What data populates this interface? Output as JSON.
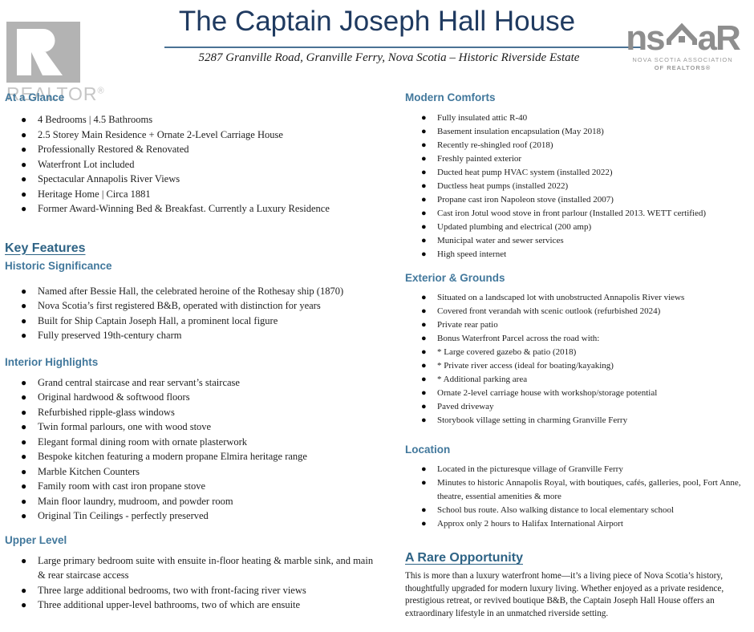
{
  "header": {
    "title": "The Captain Joseph Hall House",
    "subtitle": "5287 Granville Road, Granville Ferry, Nova Scotia – Historic Riverside Estate",
    "realtor_logo_label": "REALTOR",
    "realtor_logo_reg": "®",
    "nsar_logo": {
      "text_left": "ns",
      "text_right": "aR",
      "caption_line1": "NOVA SCOTIA ASSOCIATION",
      "caption_line2": "OF REALTORS®"
    }
  },
  "columns": [
    {
      "sections": [
        {
          "style": "h2",
          "heading": "At a Glance",
          "items": [
            "4 Bedrooms | 4.5 Bathrooms",
            "2.5 Storey Main Residence + Ornate 2-Level Carriage House",
            "Professionally Restored & Renovated",
            "Waterfront Lot included",
            "Spectacular Annapolis River Views",
            "Heritage Home | Circa 1881",
            "Former Award-Winning Bed & Breakfast. Currently a Luxury Residence"
          ]
        },
        {
          "style": "h1",
          "heading": "Key Features",
          "items": []
        },
        {
          "style": "h2",
          "heading": "Historic Significance",
          "items": [
            "Named after Bessie Hall, the celebrated heroine of the Rothesay ship (1870)",
            "Nova Scotia’s first registered B&B, operated with distinction for years",
            "Built for Ship Captain Joseph Hall, a prominent local figure",
            "Fully preserved 19th-century charm"
          ]
        },
        {
          "style": "h2",
          "heading": "Interior Highlights",
          "items": [
            "Grand central staircase and rear servant’s staircase",
            "Original hardwood & softwood floors",
            "Refurbished ripple-glass windows",
            "Twin formal parlours, one with wood stove",
            "Elegant formal dining room with ornate plasterwork",
            "Bespoke kitchen featuring a modern propane Elmira heritage range",
            "Marble Kitchen Counters",
            "Family room with cast iron propane stove",
            "Main floor laundry, mudroom, and powder room",
            "Original Tin Ceilings - perfectly preserved"
          ]
        },
        {
          "style": "h2",
          "heading": "Upper Level",
          "items": [
            "Large primary bedroom suite with ensuite in-floor heating & marble sink, and main & rear staircase access",
            "Three large additional bedrooms, two with front-facing river views",
            "Three additional upper-level bathrooms, two of which are ensuite"
          ]
        }
      ]
    },
    {
      "sections": [
        {
          "style": "h2",
          "heading": "Modern Comforts",
          "items": [
            "Fully insulated attic R-40",
            "Basement insulation encapsulation (May 2018)",
            "Recently re-shingled roof (2018)",
            "Freshly painted exterior",
            "Ducted heat pump HVAC system (installed 2022)",
            "Ductless heat pumps (installed 2022)",
            "Propane cast iron Napoleon stove (installed 2007)",
            "Cast iron Jotul wood stove in front parlour (Installed 2013. WETT certified)",
            "Updated plumbing and electrical (200 amp)",
            "Municipal water and sewer services",
            "High speed internet"
          ]
        },
        {
          "style": "h2",
          "heading": "Exterior & Grounds",
          "items": [
            "Situated on a landscaped lot with unobstructed Annapolis River views",
            "Covered front verandah with scenic outlook (refurbished 2024)",
            "Private rear patio",
            "Bonus Waterfront Parcel across the road with:",
            "* Large covered gazebo & patio (2018)",
            "* Private river access (ideal for boating/kayaking)",
            "* Additional parking area",
            "Ornate 2-level carriage house with workshop/storage potential",
            "Paved driveway",
            "Storybook village setting in charming Granville Ferry"
          ]
        },
        {
          "style": "h2",
          "heading": "Location",
          "items": [
            "Located in the picturesque village of Granville Ferry",
            "Minutes to historic Annapolis Royal, with boutiques, cafés, galleries, pool, Fort Anne, theatre, essential amenities & more",
            "School bus route. Also walking distance to local elementary school",
            "Approx only 2 hours to Halifax International Airport"
          ]
        },
        {
          "style": "h1",
          "heading": "A Rare Opportunity",
          "items": [],
          "paragraph": "This is more than a luxury waterfront home—it’s a living piece of Nova Scotia’s history, thoughtfully upgraded for modern luxury living. Whether enjoyed as a private residence, prestigious retreat, or revived boutique B&B, the Captain Joseph Hall House offers an extraordinary lifestyle in an unmatched riverside setting."
        }
      ]
    }
  ],
  "colors": {
    "title-color": "#1F3A60",
    "rule-color": "#4A7294",
    "h1-color": "#2E6385",
    "h2-color": "#42789C",
    "body-color": "#1E1E1E",
    "logo-gray": "#B3B3B3",
    "nsar-gray": "#8E8E8E"
  }
}
